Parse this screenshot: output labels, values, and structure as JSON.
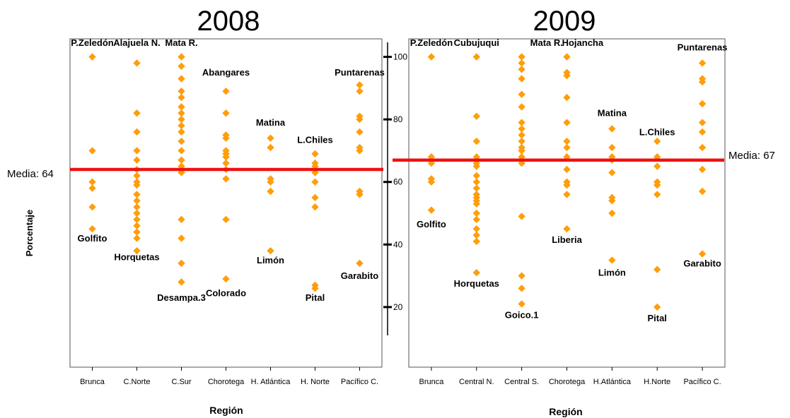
{
  "chart_data": {
    "type": "scatter",
    "ylabel": "Porcentaje",
    "y_ticks": [
      "20",
      "40",
      "60",
      "80",
      "100"
    ],
    "marker_color": "#FF9E0A",
    "mean_line_color": "#EE1111",
    "panels": [
      {
        "title": "2008",
        "xlabel": "Región",
        "ylim": [
          0,
          105
        ],
        "categories": [
          "Brunca",
          "C.Norte",
          "C.Sur",
          "Chorotega",
          "H. Atlántica",
          "H. Norte",
          "Pacífico C."
        ],
        "mean": 64,
        "mean_label": "Media: 64",
        "points": [
          [
            100,
            70,
            60,
            58,
            52,
            45
          ],
          [
            98,
            82,
            76,
            70,
            67,
            64,
            62,
            60,
            59,
            56,
            54,
            52,
            50,
            48,
            46,
            44,
            42,
            38
          ],
          [
            100,
            97,
            93,
            89,
            87,
            84,
            82,
            80,
            78,
            76,
            73,
            70,
            67,
            65,
            63,
            48,
            42,
            34,
            28
          ],
          [
            89,
            82,
            75,
            74,
            70,
            69,
            68,
            66,
            64,
            61,
            48,
            29
          ],
          [
            74,
            71,
            61,
            60,
            57,
            38
          ],
          [
            69,
            66,
            65,
            63,
            60,
            55,
            52,
            27,
            26
          ],
          [
            91,
            89,
            81,
            80,
            76,
            71,
            70,
            57,
            56,
            34
          ]
        ],
        "annotations": [
          {
            "text": "P.Zeledón",
            "x": 0,
            "y": 103.5
          },
          {
            "text": "Alajuela N.",
            "x": 1,
            "y": 103.5
          },
          {
            "text": "Mata R.",
            "x": 2,
            "y": 103.5
          },
          {
            "text": "Abangares",
            "x": 3,
            "y": 94
          },
          {
            "text": "Matina",
            "x": 4,
            "y": 78
          },
          {
            "text": "L.Chiles",
            "x": 5,
            "y": 72.5
          },
          {
            "text": "Puntarenas",
            "x": 6,
            "y": 94
          },
          {
            "text": "Golfito",
            "x": 0,
            "y": 41
          },
          {
            "text": "Horquetas",
            "x": 1,
            "y": 35
          },
          {
            "text": "Desampa.3",
            "x": 2,
            "y": 22
          },
          {
            "text": "Colorado",
            "x": 3,
            "y": 23.5
          },
          {
            "text": "Limón",
            "x": 4,
            "y": 34
          },
          {
            "text": "Pital",
            "x": 5,
            "y": 22
          },
          {
            "text": "Garabito",
            "x": 6,
            "y": 29
          }
        ]
      },
      {
        "title": "2009",
        "xlabel": "Región",
        "ylim": [
          0,
          105
        ],
        "categories": [
          "Brunca",
          "Central N.",
          "Central S.",
          "Chorotega",
          "H.Atlántica",
          "H.Norte",
          "Pacífico C."
        ],
        "mean": 67,
        "mean_label": "Media: 67",
        "points": [
          [
            100,
            68,
            66,
            61,
            60,
            51
          ],
          [
            100,
            81,
            73,
            68,
            66,
            65,
            62,
            60,
            58,
            56,
            55,
            54,
            53,
            50,
            48,
            45,
            43,
            41,
            31
          ],
          [
            100,
            98,
            96,
            93,
            88,
            84,
            79,
            77,
            75,
            73,
            71,
            70,
            68,
            66,
            49,
            30,
            26,
            21
          ],
          [
            100,
            95,
            94,
            87,
            79,
            73,
            71,
            68,
            64,
            60,
            59,
            56,
            45
          ],
          [
            77,
            71,
            68,
            67,
            63,
            55,
            54,
            50,
            35
          ],
          [
            73,
            68,
            65,
            60,
            59,
            56,
            32,
            20
          ],
          [
            98,
            93,
            92,
            85,
            79,
            76,
            71,
            64,
            57,
            37
          ]
        ],
        "annotations": [
          {
            "text": "P.Zeledón",
            "x": 0,
            "y": 103.5
          },
          {
            "text": "Cubujuqui",
            "x": 1,
            "y": 103.5
          },
          {
            "text": "Mata R.",
            "x": 2.55,
            "y": 103.5
          },
          {
            "text": "Hojancha",
            "x": 3.35,
            "y": 103.5
          },
          {
            "text": "Matina",
            "x": 4,
            "y": 81
          },
          {
            "text": "L.Chiles",
            "x": 5,
            "y": 75
          },
          {
            "text": "Puntarenas",
            "x": 6,
            "y": 102
          },
          {
            "text": "Golfito",
            "x": 0,
            "y": 45.5
          },
          {
            "text": "Horquetas",
            "x": 1,
            "y": 26.5
          },
          {
            "text": "Goico.1",
            "x": 2,
            "y": 16.5
          },
          {
            "text": "Liberia",
            "x": 3,
            "y": 40.5
          },
          {
            "text": "Limón",
            "x": 4,
            "y": 30
          },
          {
            "text": "Pital",
            "x": 5,
            "y": 15.5
          },
          {
            "text": "Garabito",
            "x": 6,
            "y": 33
          }
        ]
      }
    ]
  }
}
